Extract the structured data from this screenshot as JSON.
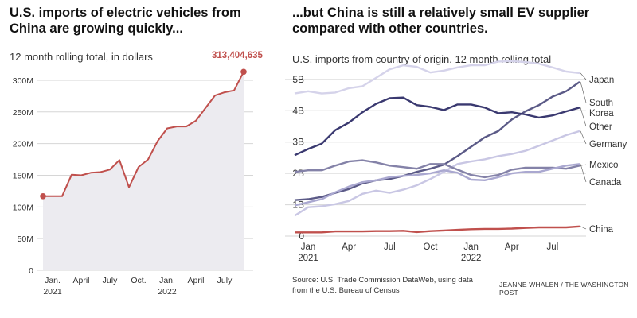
{
  "left": {
    "title": "U.S. imports of electric vehicles from China are growing quickly...",
    "subtitle": "12 month rolling total, in dollars",
    "callout": "313,404,635"
  },
  "right": {
    "title": "...but China is still a relatively small EV supplier compared with other countries.",
    "subtitle": "U.S. imports from country of origin. 12 month rolling total"
  },
  "footer": {
    "source_line1": "Source: U.S. Trade Commission DataWeb, using data",
    "source_line2": "from the U.S. Bureau of Census",
    "credit": "JEANNE WHALEN / THE WASHINGTON POST"
  },
  "colors": {
    "china_line": "#c0504d",
    "area_fill": "#ecebf0",
    "japan": "#d5d3ea",
    "south_korea": "#5b5a87",
    "other": "#3a3970",
    "germany": "#c9c7e4",
    "mexico": "#8482a8",
    "canada": "#aaa8d0",
    "china": "#c0504d"
  },
  "chart_data": [
    {
      "type": "area",
      "title": "U.S. imports of electric vehicles from China are growing quickly...",
      "subtitle": "12 month rolling total, in dollars",
      "y_ticks": [
        "0",
        "50M",
        "100M",
        "150M",
        "200M",
        "250M",
        "300M"
      ],
      "y_tick_values": [
        0,
        50000000,
        100000000,
        150000000,
        200000000,
        250000000,
        300000000
      ],
      "ylim": [
        0,
        320000000
      ],
      "x_tick_labels": [
        {
          "label": "Jan.",
          "year": "2021",
          "x": "2021-01"
        },
        {
          "label": "April",
          "year": "",
          "x": "2021-04"
        },
        {
          "label": "July",
          "year": "",
          "x": "2021-07"
        },
        {
          "label": "Oct.",
          "year": "",
          "x": "2021-10"
        },
        {
          "label": "Jan.",
          "year": "2022",
          "x": "2022-01"
        },
        {
          "label": "April",
          "year": "",
          "x": "2022-04"
        },
        {
          "label": "July",
          "year": "",
          "x": "2022-07"
        }
      ],
      "x": [
        "2020-12",
        "2021-01",
        "2021-02",
        "2021-03",
        "2021-04",
        "2021-05",
        "2021-06",
        "2021-07",
        "2021-08",
        "2021-09",
        "2021-10",
        "2021-11",
        "2021-12",
        "2022-01",
        "2022-02",
        "2022-03",
        "2022-04",
        "2022-05",
        "2022-06",
        "2022-07",
        "2022-08",
        "2022-09"
      ],
      "series": [
        {
          "values": [
            117000000,
            117000000,
            117000000,
            151000000,
            150000000,
            154000000,
            155000000,
            159000000,
            174000000,
            131000000,
            163000000,
            175000000,
            204000000,
            224000000,
            227000000,
            227000000,
            236000000,
            256000000,
            276000000,
            281000000,
            284000000,
            313404635
          ]
        }
      ],
      "labeled_point": {
        "x": "2022-09",
        "value": 313404635,
        "label": "313,404,635"
      },
      "grid": "horizontal"
    },
    {
      "type": "line",
      "title": "...but China is still a relatively small EV supplier compared with other countries.",
      "subtitle": "U.S. imports from country of origin. 12 month rolling total",
      "y_ticks": [
        "0",
        "1B",
        "2B",
        "3B",
        "4B",
        "5B"
      ],
      "y_tick_values": [
        0,
        1000000000,
        2000000000,
        3000000000,
        4000000000,
        5000000000
      ],
      "ylim": [
        0,
        5300000000
      ],
      "x_tick_labels": [
        {
          "label": "Jan",
          "year": "2021",
          "x": "2021-01"
        },
        {
          "label": "Apr",
          "year": "",
          "x": "2021-04"
        },
        {
          "label": "Jul",
          "year": "",
          "x": "2021-07"
        },
        {
          "label": "Oct",
          "year": "",
          "x": "2021-10"
        },
        {
          "label": "Jan",
          "year": "2022",
          "x": "2022-01"
        },
        {
          "label": "Apr",
          "year": "",
          "x": "2022-04"
        },
        {
          "label": "Jul",
          "year": "",
          "x": "2022-07"
        }
      ],
      "x": [
        "2020-12",
        "2021-01",
        "2021-02",
        "2021-03",
        "2021-04",
        "2021-05",
        "2021-06",
        "2021-07",
        "2021-08",
        "2021-09",
        "2021-10",
        "2021-11",
        "2021-12",
        "2022-01",
        "2022-02",
        "2022-03",
        "2022-04",
        "2022-05",
        "2022-06",
        "2022-07",
        "2022-08",
        "2022-09"
      ],
      "series": [
        {
          "name": "Japan",
          "label_lines": [
            "Japan"
          ],
          "color_key": "japan",
          "values": [
            4.55,
            4.62,
            4.55,
            4.58,
            4.72,
            4.78,
            5.05,
            5.32,
            5.45,
            5.4,
            5.22,
            5.28,
            5.38,
            5.45,
            5.45,
            5.57,
            5.58,
            5.55,
            5.5,
            5.38,
            5.25,
            5.2
          ]
        },
        {
          "name": "South Korea",
          "label_lines": [
            "South",
            "Korea"
          ],
          "color_key": "south_korea",
          "values": [
            1.15,
            1.18,
            1.25,
            1.38,
            1.5,
            1.68,
            1.78,
            1.82,
            1.92,
            2.05,
            2.15,
            2.28,
            2.55,
            2.85,
            3.15,
            3.35,
            3.72,
            3.98,
            4.18,
            4.45,
            4.62,
            4.92
          ]
        },
        {
          "name": "Other",
          "label_lines": [
            "Other"
          ],
          "color_key": "other",
          "values": [
            2.58,
            2.78,
            2.95,
            3.38,
            3.62,
            3.95,
            4.22,
            4.4,
            4.42,
            4.18,
            4.12,
            4.02,
            4.2,
            4.2,
            4.1,
            3.92,
            3.95,
            3.88,
            3.78,
            3.85,
            3.98,
            4.1
          ]
        },
        {
          "name": "Germany",
          "label_lines": [
            "Germany"
          ],
          "color_key": "germany",
          "values": [
            0.65,
            0.92,
            0.95,
            1.02,
            1.12,
            1.35,
            1.45,
            1.38,
            1.48,
            1.62,
            1.82,
            2.05,
            2.3,
            2.38,
            2.45,
            2.55,
            2.62,
            2.72,
            2.88,
            3.05,
            3.22,
            3.35
          ]
        },
        {
          "name": "Mexico",
          "label_lines": [
            "Mexico"
          ],
          "color_key": "mexico",
          "values": [
            2.05,
            2.1,
            2.1,
            2.25,
            2.38,
            2.42,
            2.35,
            2.25,
            2.2,
            2.15,
            2.3,
            2.3,
            2.12,
            1.95,
            1.88,
            1.95,
            2.12,
            2.18,
            2.18,
            2.18,
            2.15,
            2.25
          ]
        },
        {
          "name": "Canada",
          "label_lines": [
            "Canada"
          ],
          "color_key": "canada",
          "values": [
            0.98,
            1.08,
            1.18,
            1.4,
            1.58,
            1.72,
            1.78,
            1.88,
            1.92,
            1.95,
            2.0,
            2.1,
            2.02,
            1.8,
            1.78,
            1.88,
            2.0,
            2.05,
            2.05,
            2.15,
            2.25,
            2.3
          ]
        },
        {
          "name": "China",
          "label_lines": [
            "China"
          ],
          "color_key": "china",
          "values": [
            0.12,
            0.12,
            0.12,
            0.15,
            0.15,
            0.15,
            0.16,
            0.16,
            0.17,
            0.13,
            0.16,
            0.18,
            0.2,
            0.22,
            0.23,
            0.23,
            0.24,
            0.26,
            0.28,
            0.28,
            0.28,
            0.31
          ]
        }
      ],
      "legend": "direct labels at line ends, right side",
      "grid": "horizontal"
    }
  ]
}
